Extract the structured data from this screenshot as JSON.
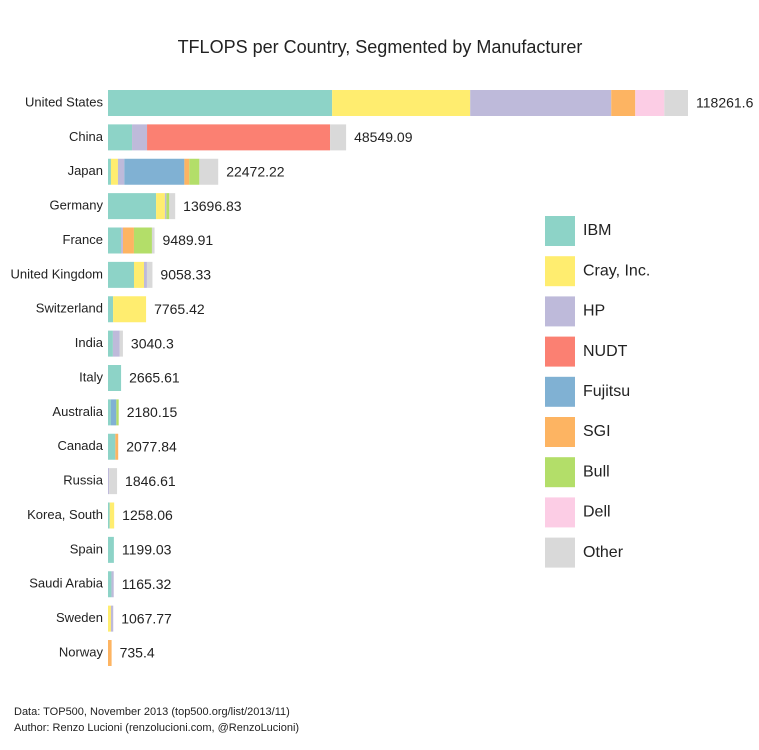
{
  "chart_data": {
    "type": "stacked-bar-horizontal",
    "title": "TFLOPS per Country, Segmented by Manufacturer",
    "categories": [
      "United States",
      "China",
      "Japan",
      "Germany",
      "France",
      "United Kingdom",
      "Switzerland",
      "India",
      "Italy",
      "Australia",
      "Canada",
      "Russia",
      "Korea, South",
      "Spain",
      "Saudi Arabia",
      "Sweden",
      "Norway"
    ],
    "totals": [
      118261.6,
      48549.09,
      22472.22,
      13696.83,
      9489.91,
      9058.33,
      7765.42,
      3040.3,
      2665.61,
      2180.15,
      2077.84,
      1846.61,
      1258.06,
      1199.03,
      1165.32,
      1067.77,
      735.4
    ],
    "series": [
      {
        "name": "IBM",
        "color": "#8dd3c7",
        "values": [
          45700,
          4900,
          600,
          9800,
          2650,
          5300,
          1035.42,
          1000,
          2665.61,
          600,
          1500,
          null,
          358.06,
          1199.03,
          700,
          null,
          null
        ]
      },
      {
        "name": "Cray, Inc.",
        "color": "#ffed6f",
        "values": [
          28150,
          null,
          1430,
          1800,
          null,
          2040,
          6730,
          null,
          null,
          null,
          null,
          null,
          900,
          null,
          null,
          600,
          null
        ]
      },
      {
        "name": "HP",
        "color": "#bebada",
        "values": [
          28760,
          3060,
          1300,
          300,
          400,
          600,
          null,
          1400,
          null,
          null,
          null,
          246.61,
          null,
          null,
          465.32,
          467.77,
          null
        ]
      },
      {
        "name": "NUDT",
        "color": "#fb8072",
        "values": [
          null,
          37330,
          null,
          null,
          null,
          null,
          null,
          null,
          null,
          null,
          null,
          null,
          null,
          null,
          null,
          null,
          null
        ]
      },
      {
        "name": "Fujitsu",
        "color": "#80b1d3",
        "values": [
          null,
          null,
          12240,
          null,
          null,
          null,
          null,
          null,
          null,
          1100,
          null,
          null,
          null,
          null,
          null,
          null,
          null
        ]
      },
      {
        "name": "SGI",
        "color": "#fdb462",
        "values": [
          4900,
          null,
          1020,
          null,
          2240,
          null,
          null,
          null,
          null,
          null,
          577.84,
          null,
          null,
          null,
          null,
          null,
          735.4
        ]
      },
      {
        "name": "Bull",
        "color": "#b3de69",
        "values": [
          null,
          null,
          2040,
          600,
          3670,
          null,
          null,
          null,
          null,
          480.15,
          null,
          null,
          null,
          null,
          null,
          null,
          null
        ]
      },
      {
        "name": "Dell",
        "color": "#fccde5",
        "values": [
          5920,
          null,
          null,
          null,
          null,
          null,
          null,
          null,
          null,
          null,
          null,
          null,
          null,
          null,
          null,
          null,
          null
        ]
      },
      {
        "name": "Other",
        "color": "#d9d9d9",
        "values": [
          4831.6,
          3259.09,
          3842.22,
          1196.83,
          529.91,
          1118.33,
          null,
          640.3,
          null,
          null,
          null,
          1600,
          null,
          null,
          null,
          null,
          null
        ]
      }
    ],
    "notes": [
      "Data: TOP500, November 2013 (top500.org/list/2013/11)",
      "Author: Renzo Lucioni (renzolucioni.com, @RenzoLucioni)"
    ]
  }
}
